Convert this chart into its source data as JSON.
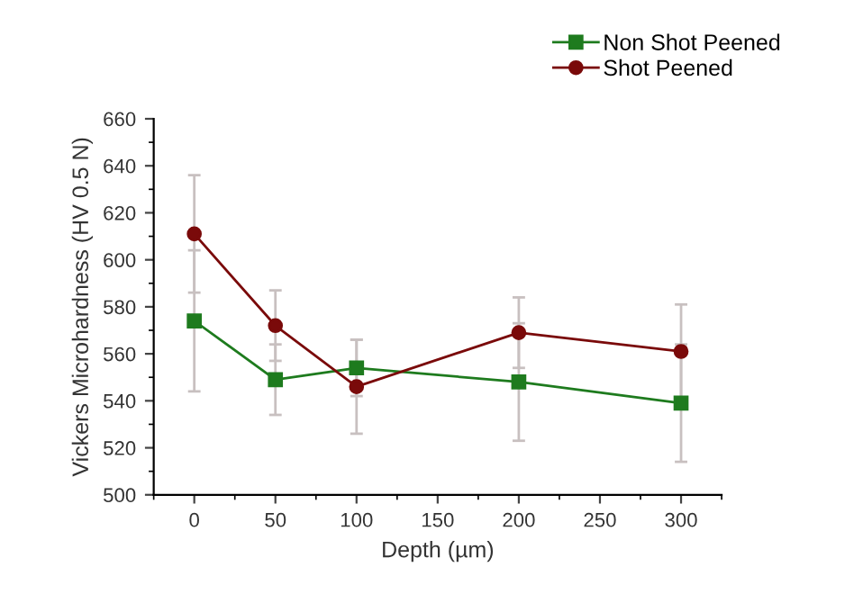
{
  "chart_data": {
    "type": "line",
    "xlabel": "Depth (µm)",
    "ylabel": "Vickers Microhardness (HV 0.5 N)",
    "x": [
      0,
      50,
      100,
      200,
      300
    ],
    "series": [
      {
        "name": "Non Shot Peened",
        "color": "#1e7b1e",
        "marker": "square",
        "values": [
          574,
          549,
          554,
          548,
          539
        ],
        "errors": [
          30,
          15,
          12,
          25,
          25
        ]
      },
      {
        "name": "Shot Peened",
        "color": "#7a0a0a",
        "marker": "circle",
        "values": [
          611,
          572,
          546,
          569,
          561
        ],
        "errors": [
          25,
          15,
          20,
          15,
          20
        ]
      }
    ],
    "xlim": [
      -25,
      325
    ],
    "xticks": [
      0,
      50,
      100,
      150,
      200,
      250,
      300
    ],
    "ylim": [
      500,
      660
    ],
    "yticks": [
      500,
      520,
      540,
      560,
      580,
      600,
      620,
      640,
      660
    ],
    "grid": false,
    "legend": "top right",
    "line_style": "solid"
  }
}
